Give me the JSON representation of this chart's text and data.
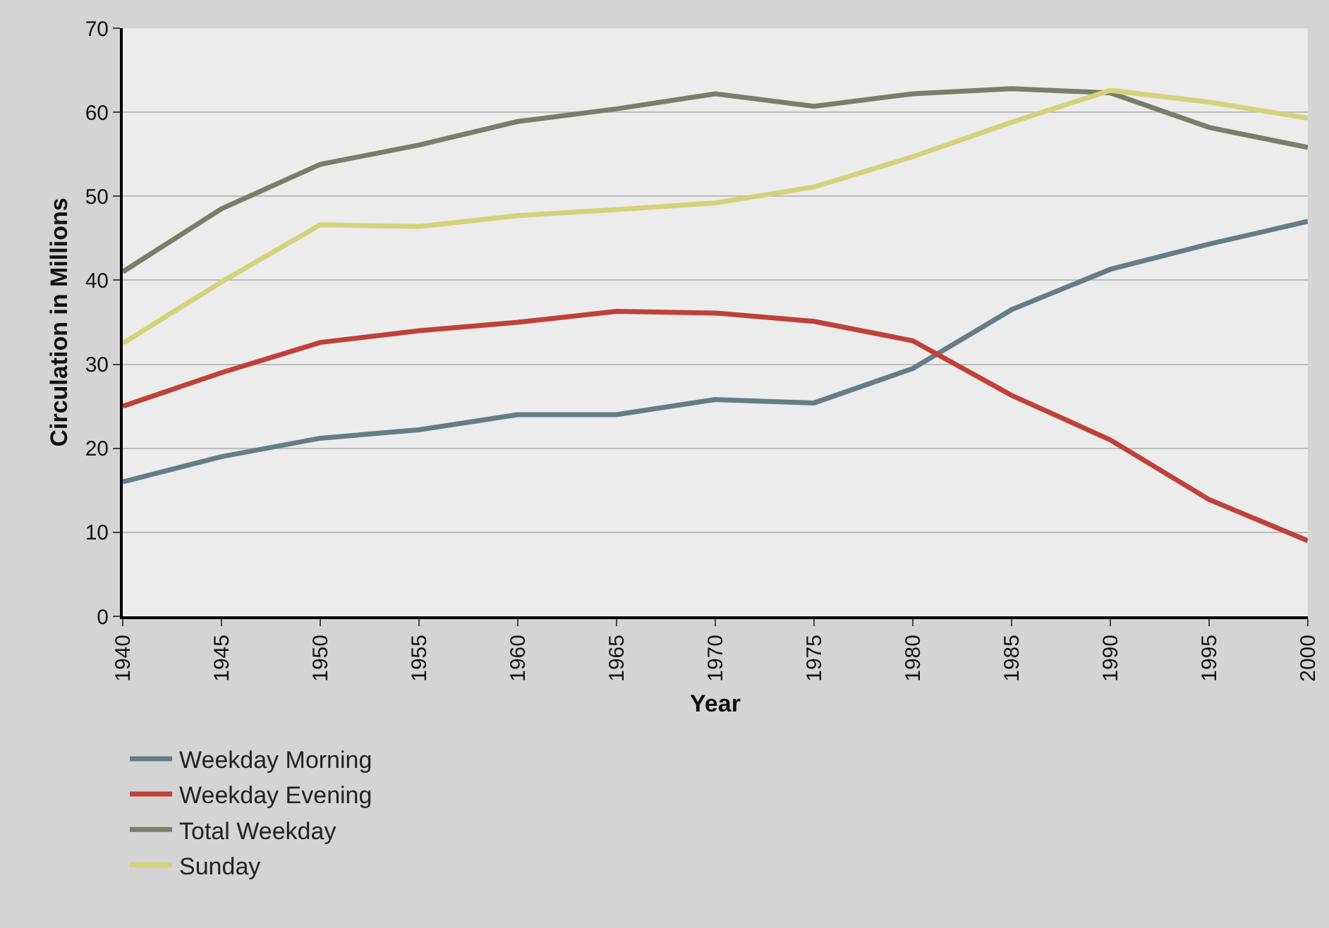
{
  "chart_data": {
    "type": "line",
    "xlabel": "Year",
    "ylabel": "Circulation in Millions",
    "x": [
      1940,
      1945,
      1950,
      1955,
      1960,
      1965,
      1970,
      1975,
      1980,
      1985,
      1990,
      1995,
      2000
    ],
    "series": [
      {
        "name": "Weekday Morning",
        "color": "#667c86",
        "values": [
          16,
          19,
          21.2,
          22.2,
          24,
          24,
          25.8,
          25.4,
          29.5,
          36.5,
          41.3,
          44.3,
          47
        ]
      },
      {
        "name": "Weekday Evening",
        "color": "#c0403a",
        "values": [
          25,
          29,
          32.6,
          34,
          35,
          36.3,
          36.1,
          35.1,
          32.8,
          26.3,
          21,
          13.9,
          9
        ]
      },
      {
        "name": "Total Weekday",
        "color": "#7a7d68",
        "values": [
          41,
          48.5,
          53.8,
          56.1,
          58.9,
          60.4,
          62.2,
          60.7,
          62.2,
          62.8,
          62.3,
          58.2,
          55.8
        ]
      },
      {
        "name": "Sunday",
        "color": "#d3d37c",
        "values": [
          32.5,
          39.8,
          46.6,
          46.4,
          47.7,
          48.4,
          49.2,
          51.1,
          54.7,
          58.8,
          62.6,
          61.2,
          59.3
        ]
      }
    ],
    "xlim": [
      1940,
      2000
    ],
    "xticks": [
      1940,
      1945,
      1950,
      1955,
      1960,
      1965,
      1970,
      1975,
      1980,
      1985,
      1990,
      1995,
      2000
    ],
    "ylim": [
      0,
      70
    ],
    "yticks": [
      0,
      10,
      20,
      30,
      40,
      50,
      60,
      70
    ],
    "grid": "y",
    "legend": "bottom left",
    "marker": "none",
    "line_style": "solid"
  }
}
